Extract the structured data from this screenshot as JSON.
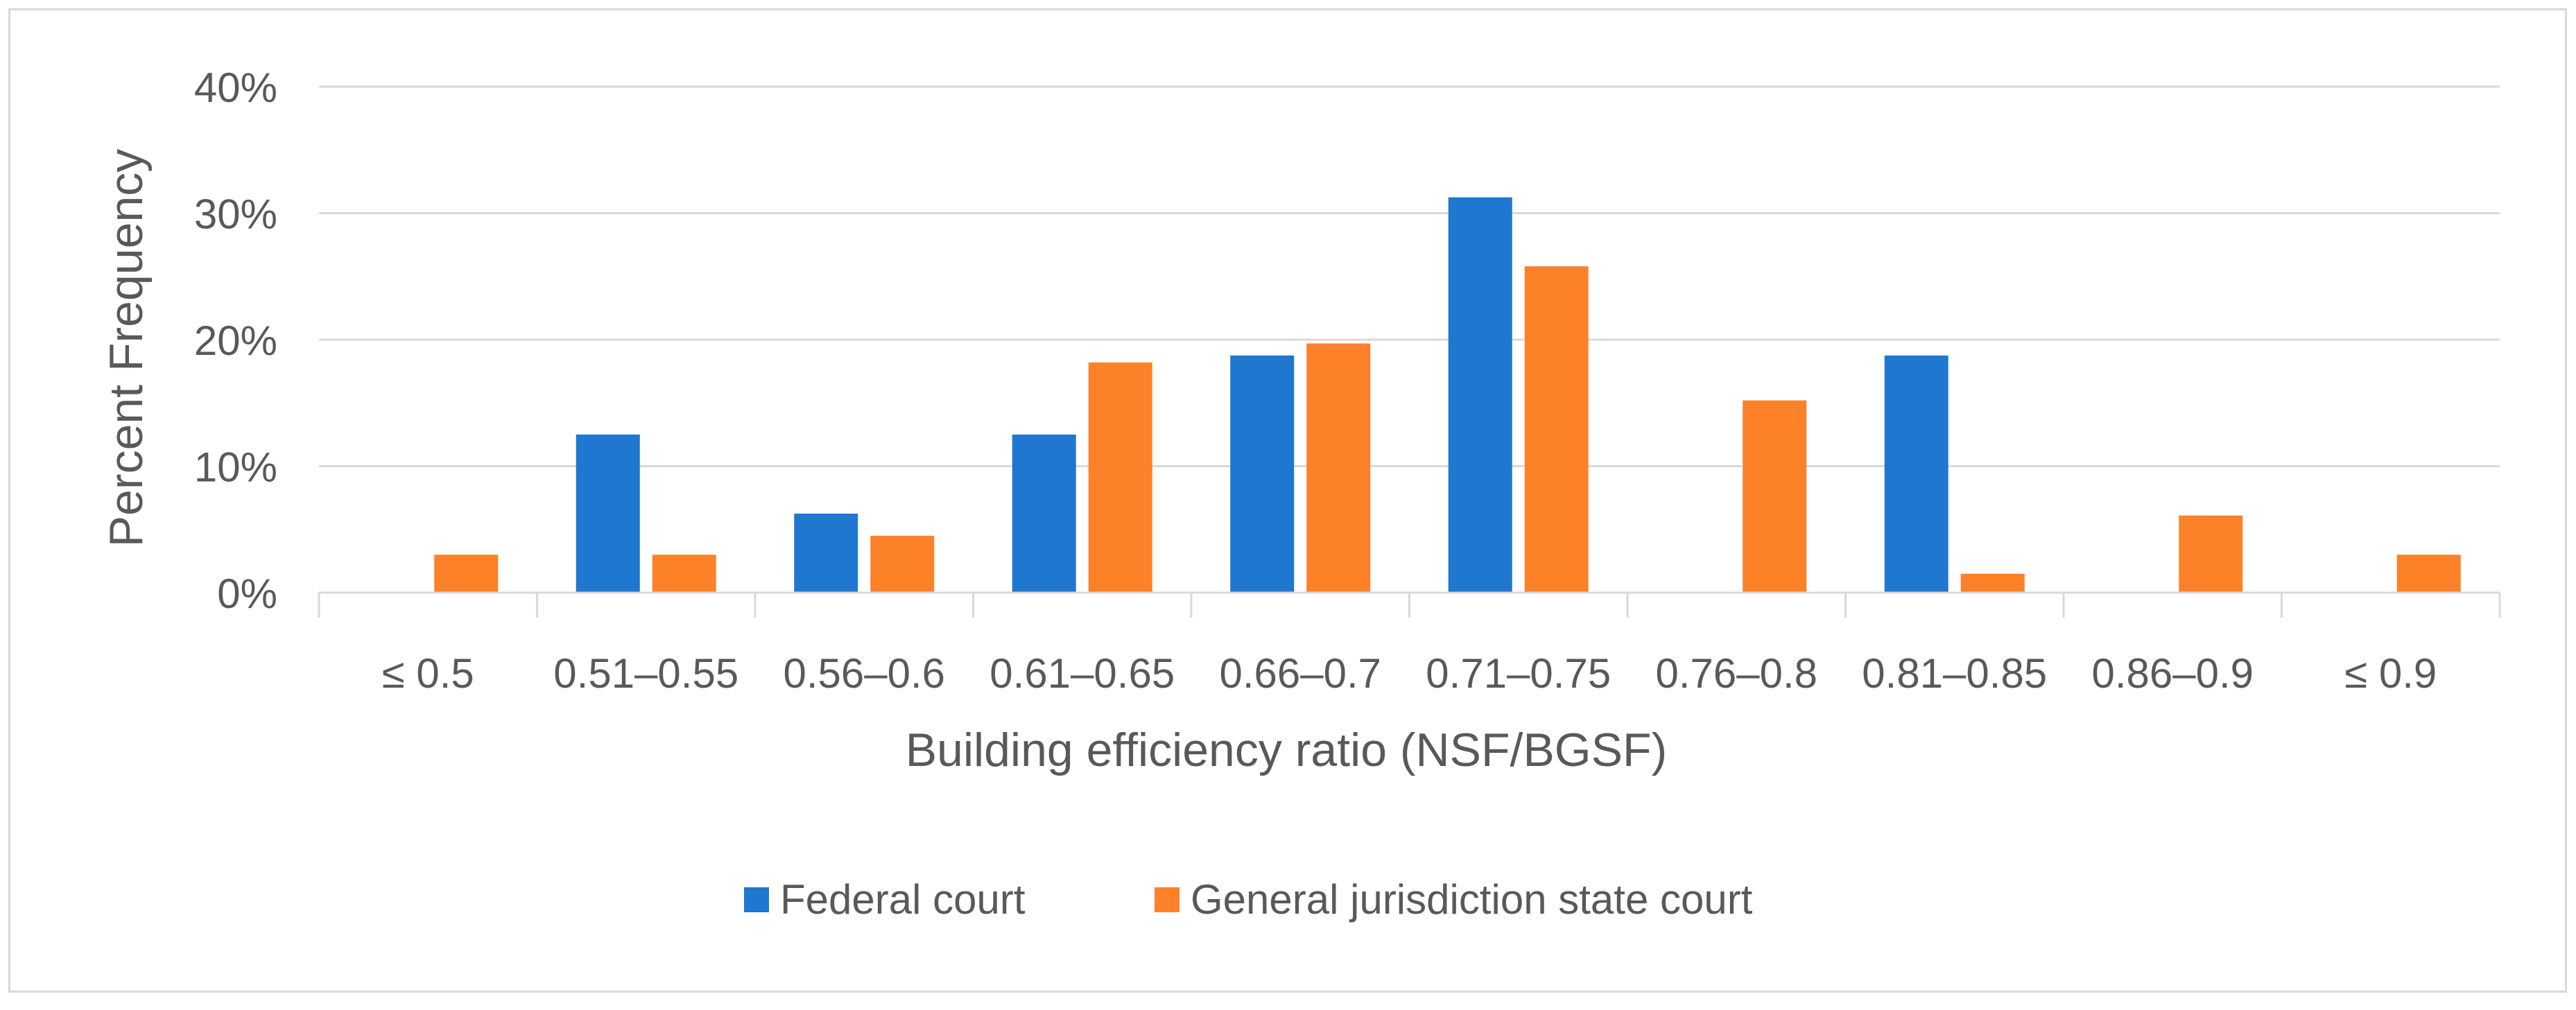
{
  "chart_data": {
    "type": "bar",
    "title": "",
    "xlabel": "Building efficiency ratio (NSF/BGSF)",
    "ylabel": "Percent Frequency",
    "ylim": [
      0,
      40
    ],
    "yticks": [
      "0%",
      "10%",
      "20%",
      "30%",
      "40%"
    ],
    "grid": true,
    "legend_position": "bottom",
    "categories": [
      "≤ 0.5",
      "0.51–0.55",
      "0.56–0.6",
      "0.61–0.65",
      "0.66–0.7",
      "0.71–0.75",
      "0.76–0.8",
      "0.81–0.85",
      "0.86–0.9",
      "≤ 0.9"
    ],
    "series": [
      {
        "name": "Federal court",
        "color": "#1f77d0",
        "values": [
          0,
          12.5,
          6.25,
          12.5,
          18.75,
          31.25,
          0,
          18.75,
          0,
          0
        ]
      },
      {
        "name": "General jurisdiction state court",
        "color": "#fd8128",
        "values": [
          3.0,
          3.0,
          4.5,
          18.2,
          19.7,
          25.8,
          15.2,
          1.5,
          6.1,
          3.0
        ]
      }
    ]
  }
}
